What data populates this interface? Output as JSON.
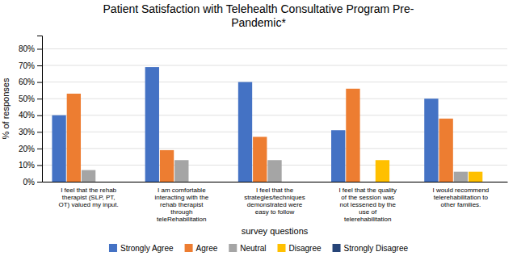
{
  "chart_data": {
    "type": "bar",
    "title": "Patient Satisfaction with Telehealth Consultative Program Pre-\nPandemic*",
    "x_label": "survey questions",
    "y_label": "% of responses",
    "categories": [
      "I feel that the rehab\ntherapist (SLP, PT,\nOT) valued my input.",
      "I am comfortable\ninteracting with the\nrehab therapist\nthrough\nteleRehabilitation",
      "I feel that the\nstrategies/techniques\ndemonstrated were\neasy to follow",
      "I feel that the quality\nof the session was\nnot lessened by the\nuse of\ntelerehabilitation",
      "I would recommend\ntelerehabilitation to\nother families."
    ],
    "series": [
      {
        "name": "Strongly Agree",
        "color": "#4472C4",
        "values": [
          0.4,
          0.69,
          0.6,
          0.31,
          0.5
        ]
      },
      {
        "name": "Agree",
        "color": "#ED7D31",
        "values": [
          0.53,
          0.19,
          0.27,
          0.56,
          0.38
        ]
      },
      {
        "name": "Neutral",
        "color": "#A5A5A5",
        "values": [
          0.07,
          0.13,
          0.13,
          0.0,
          0.06
        ]
      },
      {
        "name": "Disagree",
        "color": "#FFC000",
        "values": [
          0.0,
          0.0,
          0.0,
          0.13,
          0.06
        ]
      },
      {
        "name": "Strongly Disagree",
        "color": "#264478",
        "values": [
          0.0,
          0.0,
          0.0,
          0.0,
          0.0
        ]
      }
    ],
    "ylim": [
      0,
      0.88
    ],
    "yticks": [
      {
        "value": 0,
        "label": "0%"
      },
      {
        "value": 0.1,
        "label": "10%"
      },
      {
        "value": 0.2,
        "label": "20%"
      },
      {
        "value": 0.3,
        "label": "30%"
      },
      {
        "value": 0.4,
        "label": "40%"
      },
      {
        "value": 0.5,
        "label": "50%"
      },
      {
        "value": 0.6,
        "label": "60%"
      },
      {
        "value": 0.7,
        "label": "70%"
      },
      {
        "value": 0.8,
        "label": "80%"
      }
    ],
    "grid": true,
    "legend": "bottom"
  }
}
